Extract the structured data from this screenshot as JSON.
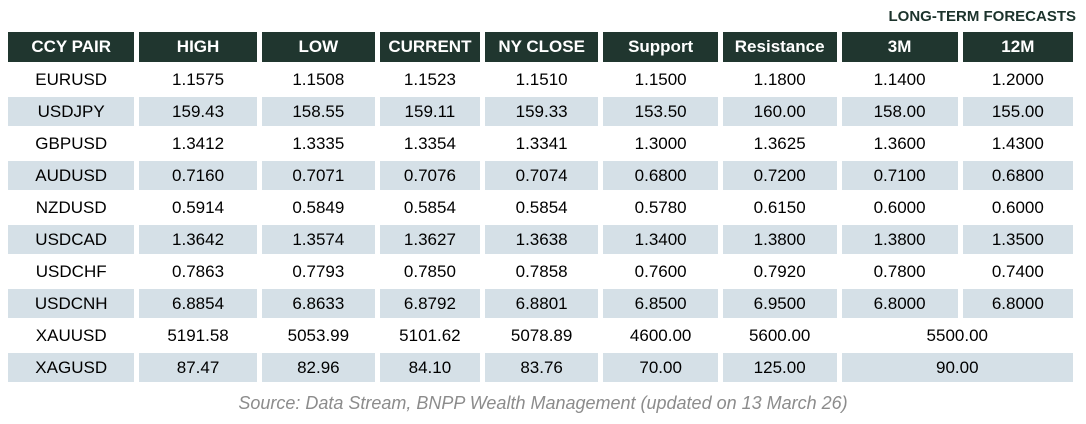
{
  "chart_data": {
    "type": "table",
    "header_label": "LONG-TERM FORECASTS",
    "long_term_forecast_columns": [
      "3M",
      "12M"
    ],
    "columns": [
      "CCY PAIR",
      "HIGH",
      "LOW",
      "CURRENT",
      "NY CLOSE",
      "Support",
      "Resistance",
      "3M",
      "12M"
    ],
    "rows": [
      {
        "pair": "EURUSD",
        "values": [
          "1.1575",
          "1.1508",
          "1.1523",
          "1.1510",
          "1.1500",
          "1.1800",
          "1.1400",
          "1.2000"
        ]
      },
      {
        "pair": "USDJPY",
        "values": [
          "159.43",
          "158.55",
          "159.11",
          "159.33",
          "153.50",
          "160.00",
          "158.00",
          "155.00"
        ]
      },
      {
        "pair": "GBPUSD",
        "values": [
          "1.3412",
          "1.3335",
          "1.3354",
          "1.3341",
          "1.3000",
          "1.3625",
          "1.3600",
          "1.4300"
        ]
      },
      {
        "pair": "AUDUSD",
        "values": [
          "0.7160",
          "0.7071",
          "0.7076",
          "0.7074",
          "0.6800",
          "0.7200",
          "0.7100",
          "0.6800"
        ]
      },
      {
        "pair": "NZDUSD",
        "values": [
          "0.5914",
          "0.5849",
          "0.5854",
          "0.5854",
          "0.5780",
          "0.6150",
          "0.6000",
          "0.6000"
        ]
      },
      {
        "pair": "USDCAD",
        "values": [
          "1.3642",
          "1.3574",
          "1.3627",
          "1.3638",
          "1.3400",
          "1.3800",
          "1.3800",
          "1.3500"
        ]
      },
      {
        "pair": "USDCHF",
        "values": [
          "0.7863",
          "0.7793",
          "0.7850",
          "0.7858",
          "0.7600",
          "0.7920",
          "0.7800",
          "0.7400"
        ]
      },
      {
        "pair": "USDCNH",
        "values": [
          "6.8854",
          "6.8633",
          "6.8792",
          "6.8801",
          "6.8500",
          "6.9500",
          "6.8000",
          "6.8000"
        ]
      },
      {
        "pair": "XAUUSD",
        "values": [
          "5191.58",
          "5053.99",
          "5101.62",
          "5078.89",
          "4600.00",
          "5600.00"
        ],
        "merged_forecast": "5500.00"
      },
      {
        "pair": "XAGUSD",
        "values": [
          "87.47",
          "82.96",
          "84.10",
          "83.76",
          "70.00",
          "125.00"
        ],
        "merged_forecast": "90.00"
      }
    ],
    "source_note": "Source: Data Stream, BNPP Wealth Management (updated on 13 March 26)"
  },
  "colors": {
    "header_bg": "#20362f",
    "header_text": "#ffffff",
    "row_stripe_bg": "#d5e0e7",
    "row_plain_bg": "#ffffff",
    "body_text": "#000000",
    "label_text": "#1c332c",
    "source_text": "#8c8c8c"
  }
}
